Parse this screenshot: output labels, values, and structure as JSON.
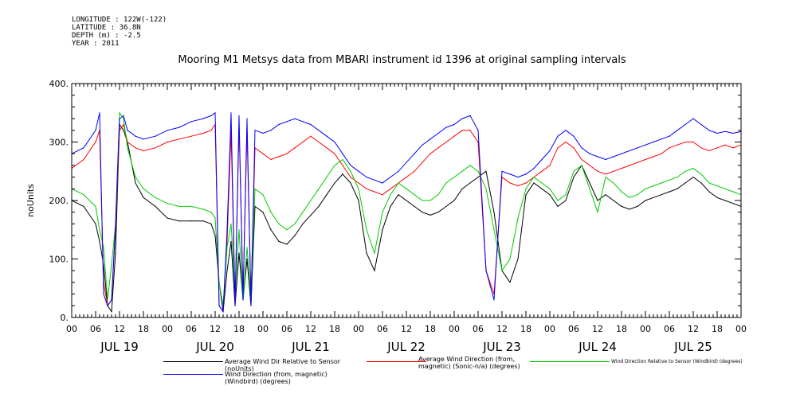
{
  "meta": {
    "longitude": "LONGITUDE : 122W(-122)",
    "latitude": "LATITUDE : 36.8N",
    "depth": "DEPTH (m) : -2.5",
    "year": "YEAR : 2011"
  },
  "chart_data": {
    "type": "line",
    "title": "Mooring M1 Metsys data from MBARI instrument id 1396 at original sampling intervals",
    "ylabel": "noUnits",
    "xlabel": "",
    "ylim": [
      0,
      400
    ],
    "yticks": [
      0,
      100,
      200,
      300,
      400
    ],
    "ytick_labels": [
      "0.",
      "100.",
      "200.",
      "300.",
      "400."
    ],
    "xlim": [
      0,
      168
    ],
    "xtick_hours": [
      "00",
      "06",
      "12",
      "18",
      "00",
      "06",
      "12",
      "18",
      "00",
      "06",
      "12",
      "18",
      "00",
      "06",
      "12",
      "18",
      "00",
      "06",
      "12",
      "18",
      "00",
      "06",
      "12",
      "18",
      "00",
      "06",
      "12",
      "18",
      "00"
    ],
    "day_labels": [
      "JUL 19",
      "JUL 20",
      "JUL 21",
      "JUL 22",
      "JUL 23",
      "JUL 24",
      "JUL 25"
    ],
    "grid": false,
    "legend_position": "bottom",
    "series": [
      {
        "name": "Average Wind Dir Relative to Sensor (noUnits)",
        "color": "#000000",
        "x": [
          0,
          3,
          6,
          7,
          8,
          9,
          10,
          11,
          12,
          13,
          14,
          16,
          18,
          21,
          24,
          27,
          30,
          33,
          35,
          36,
          37,
          38,
          39,
          40,
          41,
          42,
          43,
          44,
          45,
          46,
          48,
          50,
          52,
          54,
          56,
          58,
          60,
          62,
          64,
          66,
          68,
          70,
          72,
          74,
          76,
          78,
          80,
          82,
          84,
          86,
          88,
          90,
          92,
          94,
          96,
          98,
          100,
          102,
          104,
          106,
          108,
          110,
          112,
          114,
          116,
          118,
          120,
          122,
          124,
          126,
          128,
          130,
          132,
          134,
          136,
          138,
          140,
          142,
          144,
          146,
          148,
          150,
          152,
          154,
          156,
          158,
          160,
          162,
          164,
          166,
          168
        ],
        "y": [
          200,
          190,
          160,
          130,
          90,
          20,
          10,
          110,
          330,
          320,
          300,
          230,
          205,
          190,
          170,
          165,
          165,
          165,
          160,
          140,
          60,
          10,
          80,
          130,
          20,
          110,
          30,
          100,
          20,
          190,
          180,
          150,
          130,
          125,
          140,
          160,
          175,
          190,
          210,
          230,
          245,
          230,
          200,
          110,
          80,
          150,
          190,
          210,
          200,
          190,
          180,
          175,
          180,
          190,
          200,
          220,
          230,
          240,
          250,
          180,
          80,
          60,
          100,
          210,
          230,
          220,
          210,
          190,
          200,
          240,
          260,
          230,
          200,
          210,
          200,
          190,
          185,
          190,
          200,
          205,
          210,
          215,
          220,
          230,
          240,
          230,
          215,
          205,
          200,
          195,
          190
        ]
      },
      {
        "name": "Average Wind Direction (from, magnetic) (Sonic-n/a) (degrees)",
        "color": "#ff0000",
        "x": [
          0,
          3,
          6,
          7,
          8,
          9,
          10,
          11,
          12,
          13,
          14,
          16,
          18,
          21,
          24,
          27,
          30,
          33,
          35,
          36,
          37,
          38,
          39,
          40,
          41,
          42,
          43,
          44,
          45,
          46,
          48,
          50,
          52,
          54,
          56,
          58,
          60,
          62,
          64,
          66,
          68,
          70,
          72,
          74,
          76,
          78,
          80,
          82,
          84,
          86,
          88,
          90,
          92,
          94,
          96,
          98,
          100,
          102,
          104,
          106,
          108,
          110,
          112,
          114,
          116,
          118,
          120,
          122,
          124,
          126,
          128,
          130,
          132,
          134,
          136,
          138,
          140,
          142,
          144,
          146,
          148,
          150,
          152,
          154,
          156,
          158,
          160,
          162,
          164,
          166,
          168
        ],
        "y": [
          255,
          270,
          300,
          320,
          60,
          20,
          30,
          150,
          320,
          330,
          300,
          290,
          285,
          290,
          300,
          305,
          310,
          315,
          320,
          330,
          20,
          10,
          130,
          320,
          20,
          330,
          40,
          320,
          30,
          290,
          280,
          270,
          275,
          280,
          290,
          300,
          310,
          300,
          290,
          280,
          260,
          240,
          230,
          220,
          215,
          210,
          220,
          230,
          240,
          250,
          265,
          280,
          290,
          300,
          310,
          320,
          320,
          300,
          80,
          40,
          240,
          230,
          225,
          230,
          240,
          250,
          260,
          290,
          300,
          290,
          270,
          260,
          250,
          245,
          250,
          255,
          260,
          265,
          270,
          275,
          280,
          290,
          295,
          300,
          300,
          290,
          285,
          290,
          295,
          290,
          295
        ]
      },
      {
        "name": "Wind Direction Relative to Sensor (Windbird) (degrees)",
        "color": "#00cc00",
        "x": [
          0,
          3,
          6,
          7,
          8,
          9,
          10,
          11,
          12,
          13,
          14,
          16,
          18,
          21,
          24,
          27,
          30,
          33,
          35,
          36,
          37,
          38,
          39,
          40,
          41,
          42,
          43,
          44,
          45,
          46,
          48,
          50,
          52,
          54,
          56,
          58,
          60,
          62,
          64,
          66,
          68,
          70,
          72,
          74,
          76,
          78,
          80,
          82,
          84,
          86,
          88,
          90,
          92,
          94,
          96,
          98,
          100,
          102,
          104,
          106,
          108,
          110,
          112,
          114,
          116,
          118,
          120,
          122,
          124,
          126,
          128,
          130,
          132,
          134,
          136,
          138,
          140,
          142,
          144,
          146,
          148,
          150,
          152,
          154,
          156,
          158,
          160,
          162,
          164,
          166,
          168
        ],
        "y": [
          220,
          210,
          190,
          150,
          120,
          30,
          90,
          160,
          350,
          340,
          290,
          240,
          220,
          205,
          195,
          190,
          190,
          185,
          180,
          170,
          60,
          20,
          120,
          160,
          40,
          150,
          30,
          120,
          30,
          220,
          210,
          180,
          160,
          150,
          160,
          180,
          200,
          220,
          240,
          260,
          270,
          250,
          220,
          150,
          110,
          180,
          210,
          230,
          220,
          210,
          200,
          200,
          210,
          230,
          240,
          250,
          260,
          250,
          220,
          150,
          80,
          100,
          170,
          220,
          240,
          230,
          220,
          200,
          210,
          250,
          260,
          220,
          180,
          240,
          230,
          215,
          205,
          210,
          220,
          225,
          230,
          235,
          240,
          250,
          255,
          245,
          230,
          225,
          220,
          215,
          210
        ]
      },
      {
        "name": "Wind Direction (from, magnetic) (Windbird) (degrees)",
        "color": "#0000ff",
        "x": [
          0,
          3,
          6,
          7,
          8,
          9,
          10,
          11,
          12,
          13,
          14,
          16,
          18,
          21,
          24,
          27,
          30,
          33,
          35,
          36,
          37,
          38,
          39,
          40,
          41,
          42,
          43,
          44,
          45,
          46,
          48,
          50,
          52,
          54,
          56,
          58,
          60,
          62,
          64,
          66,
          68,
          70,
          72,
          74,
          76,
          78,
          80,
          82,
          84,
          86,
          88,
          90,
          92,
          94,
          96,
          98,
          100,
          102,
          104,
          106,
          108,
          110,
          112,
          114,
          116,
          118,
          120,
          122,
          124,
          126,
          128,
          130,
          132,
          134,
          136,
          138,
          140,
          142,
          144,
          146,
          148,
          150,
          152,
          154,
          156,
          158,
          160,
          162,
          164,
          166,
          168
        ],
        "y": [
          280,
          290,
          320,
          350,
          40,
          20,
          30,
          160,
          340,
          345,
          320,
          310,
          305,
          310,
          320,
          325,
          335,
          340,
          345,
          350,
          20,
          10,
          150,
          350,
          20,
          345,
          30,
          340,
          20,
          320,
          315,
          320,
          330,
          335,
          340,
          335,
          330,
          320,
          310,
          300,
          280,
          260,
          250,
          240,
          235,
          230,
          240,
          250,
          265,
          280,
          295,
          305,
          315,
          325,
          330,
          340,
          345,
          320,
          80,
          30,
          250,
          245,
          240,
          245,
          255,
          270,
          285,
          310,
          320,
          310,
          290,
          280,
          275,
          270,
          275,
          280,
          285,
          290,
          295,
          300,
          305,
          310,
          320,
          330,
          340,
          330,
          320,
          315,
          318,
          315,
          318
        ]
      }
    ]
  }
}
